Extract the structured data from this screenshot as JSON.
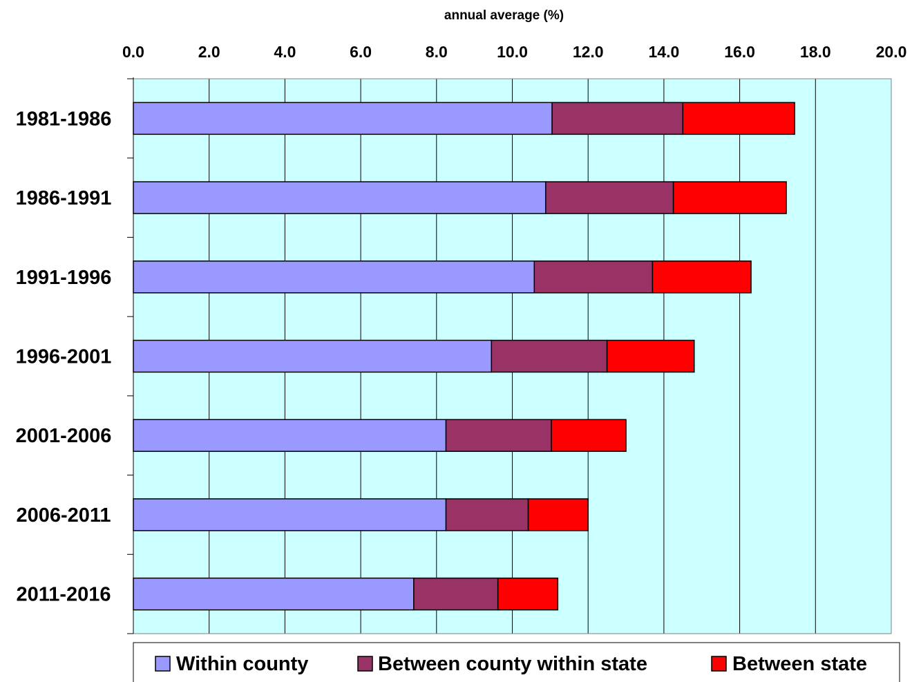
{
  "chart_data": {
    "type": "bar",
    "orientation": "horizontal",
    "stacked": true,
    "title": "",
    "xlabel": "annual average (%)",
    "ylabel": "",
    "xlim": [
      0,
      20
    ],
    "x_ticks": [
      "0.0",
      "2.0",
      "4.0",
      "6.0",
      "8.0",
      "10.0",
      "12.0",
      "14.0",
      "16.0",
      "18.0",
      "20.0"
    ],
    "x_axis_position": "top",
    "grid": "vertical",
    "legend_position": "bottom",
    "categories": [
      "1981-1986",
      "1986-1991",
      "1991-1996",
      "1996-2001",
      "2001-2006",
      "2006-2011",
      "2011-2016"
    ],
    "series": [
      {
        "name": "Within county",
        "color": "#9999ff",
        "values": [
          11.05,
          10.88,
          10.58,
          9.45,
          8.25,
          8.25,
          7.4
        ]
      },
      {
        "name": "Between county within state",
        "color": "#993366",
        "values": [
          3.45,
          3.37,
          3.12,
          3.05,
          2.78,
          2.17,
          2.22
        ]
      },
      {
        "name": "Between state",
        "color": "#ff0000",
        "values": [
          2.95,
          2.98,
          2.6,
          2.3,
          1.97,
          1.58,
          1.58
        ]
      }
    ],
    "plot_background": "#ccffff"
  }
}
